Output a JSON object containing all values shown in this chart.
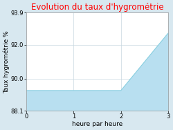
{
  "title": "Evolution du taux d'hygrométrie",
  "title_color": "#ff0000",
  "xlabel": "heure par heure",
  "ylabel": "Taux hygrométrie %",
  "background_color": "#d8e8f0",
  "plot_bg_color": "#ffffff",
  "line_color": "#89cfe0",
  "fill_color": "#b8dff0",
  "x": [
    0,
    2,
    3
  ],
  "y": [
    89.3,
    89.3,
    92.7
  ],
  "ylim": [
    88.1,
    93.9
  ],
  "xlim": [
    0,
    3
  ],
  "yticks": [
    88.1,
    90.0,
    92.0,
    93.9
  ],
  "xticks": [
    0,
    1,
    2,
    3
  ],
  "title_fontsize": 8.5,
  "label_fontsize": 6.5,
  "tick_fontsize": 6,
  "grid_color": "#c8d8e0"
}
